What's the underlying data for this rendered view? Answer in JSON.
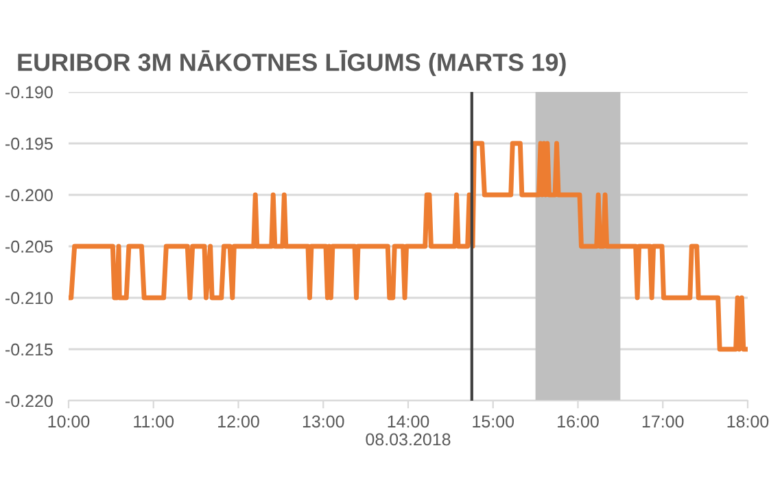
{
  "chart_data": {
    "type": "line",
    "title": "EURIBOR 3M NĀKOTNES LĪGUMS (MARTS 19)",
    "xlabel": "08.03.2018",
    "x": [
      10.0,
      10.03,
      10.07,
      10.52,
      10.54,
      10.57,
      10.59,
      10.6,
      10.68,
      10.71,
      10.86,
      10.89,
      11.12,
      11.15,
      11.4,
      11.43,
      11.46,
      11.6,
      11.62,
      11.67,
      11.69,
      11.8,
      11.83,
      11.9,
      11.93,
      11.95,
      12.18,
      12.2,
      12.22,
      12.39,
      12.41,
      12.43,
      12.52,
      12.54,
      12.56,
      12.82,
      12.84,
      12.86,
      13.03,
      13.05,
      13.07,
      13.09,
      13.11,
      13.37,
      13.39,
      13.41,
      13.76,
      13.78,
      13.82,
      13.84,
      13.94,
      13.96,
      13.98,
      14.2,
      14.22,
      14.25,
      14.27,
      14.55,
      14.57,
      14.59,
      14.7,
      14.72,
      14.76,
      14.78,
      14.87,
      14.9,
      15.21,
      15.23,
      15.32,
      15.34,
      15.54,
      15.56,
      15.58,
      15.6,
      15.62,
      15.64,
      15.66,
      15.73,
      15.75,
      15.77,
      16.02,
      16.04,
      16.22,
      16.24,
      16.26,
      16.3,
      16.32,
      16.34,
      16.68,
      16.7,
      16.72,
      16.85,
      16.87,
      16.89,
      16.99,
      17.01,
      17.03,
      17.32,
      17.34,
      17.4,
      17.42,
      17.65,
      17.67,
      17.86,
      17.88,
      17.9,
      17.93,
      17.95,
      18.0
    ],
    "series": [
      {
        "color": "#ed7d31",
        "values": [
          -0.21,
          -0.21,
          -0.205,
          -0.205,
          -0.21,
          -0.21,
          -0.205,
          -0.21,
          -0.21,
          -0.205,
          -0.205,
          -0.21,
          -0.21,
          -0.205,
          -0.205,
          -0.21,
          -0.205,
          -0.205,
          -0.21,
          -0.205,
          -0.21,
          -0.21,
          -0.205,
          -0.205,
          -0.21,
          -0.205,
          -0.205,
          -0.2,
          -0.205,
          -0.205,
          -0.2,
          -0.205,
          -0.205,
          -0.2,
          -0.205,
          -0.205,
          -0.21,
          -0.205,
          -0.205,
          -0.21,
          -0.205,
          -0.21,
          -0.205,
          -0.205,
          -0.21,
          -0.205,
          -0.205,
          -0.21,
          -0.21,
          -0.205,
          -0.205,
          -0.21,
          -0.205,
          -0.205,
          -0.2,
          -0.2,
          -0.205,
          -0.205,
          -0.2,
          -0.205,
          -0.205,
          -0.2,
          -0.205,
          -0.195,
          -0.195,
          -0.2,
          -0.2,
          -0.195,
          -0.195,
          -0.2,
          -0.2,
          -0.195,
          -0.2,
          -0.195,
          -0.2,
          -0.195,
          -0.2,
          -0.2,
          -0.195,
          -0.2,
          -0.2,
          -0.205,
          -0.205,
          -0.2,
          -0.205,
          -0.205,
          -0.2,
          -0.205,
          -0.205,
          -0.21,
          -0.205,
          -0.205,
          -0.21,
          -0.205,
          -0.205,
          -0.21,
          -0.21,
          -0.21,
          -0.205,
          -0.205,
          -0.21,
          -0.21,
          -0.215,
          -0.215,
          -0.21,
          -0.215,
          -0.21,
          -0.215,
          -0.215
        ]
      }
    ],
    "xlim": [
      10,
      18
    ],
    "xticks": [
      {
        "value": 10,
        "label": "10:00"
      },
      {
        "value": 11,
        "label": "11:00"
      },
      {
        "value": 12,
        "label": "12:00"
      },
      {
        "value": 13,
        "label": "13:00"
      },
      {
        "value": 14,
        "label": "14:00"
      },
      {
        "value": 15,
        "label": "15:00"
      },
      {
        "value": 16,
        "label": "16:00"
      },
      {
        "value": 17,
        "label": "17:00"
      },
      {
        "value": 18,
        "label": "18:00"
      }
    ],
    "ylim": [
      -0.22,
      -0.19
    ],
    "yticks": [
      {
        "value": -0.22,
        "label": "-0.220"
      },
      {
        "value": -0.215,
        "label": "-0.215"
      },
      {
        "value": -0.21,
        "label": "-0.210"
      },
      {
        "value": -0.205,
        "label": "-0.205"
      },
      {
        "value": -0.2,
        "label": "-0.200"
      },
      {
        "value": -0.195,
        "label": "-0.195"
      },
      {
        "value": -0.19,
        "label": "-0.190"
      }
    ],
    "ref_lines": [
      {
        "axis": "x",
        "value": 14.75,
        "color": "#404040"
      }
    ],
    "bands": [
      {
        "axis": "x",
        "from": 15.5,
        "to": 16.5,
        "color": "#bfbfbf"
      }
    ],
    "grid": "y",
    "marker": "none",
    "line_style": "solid"
  }
}
